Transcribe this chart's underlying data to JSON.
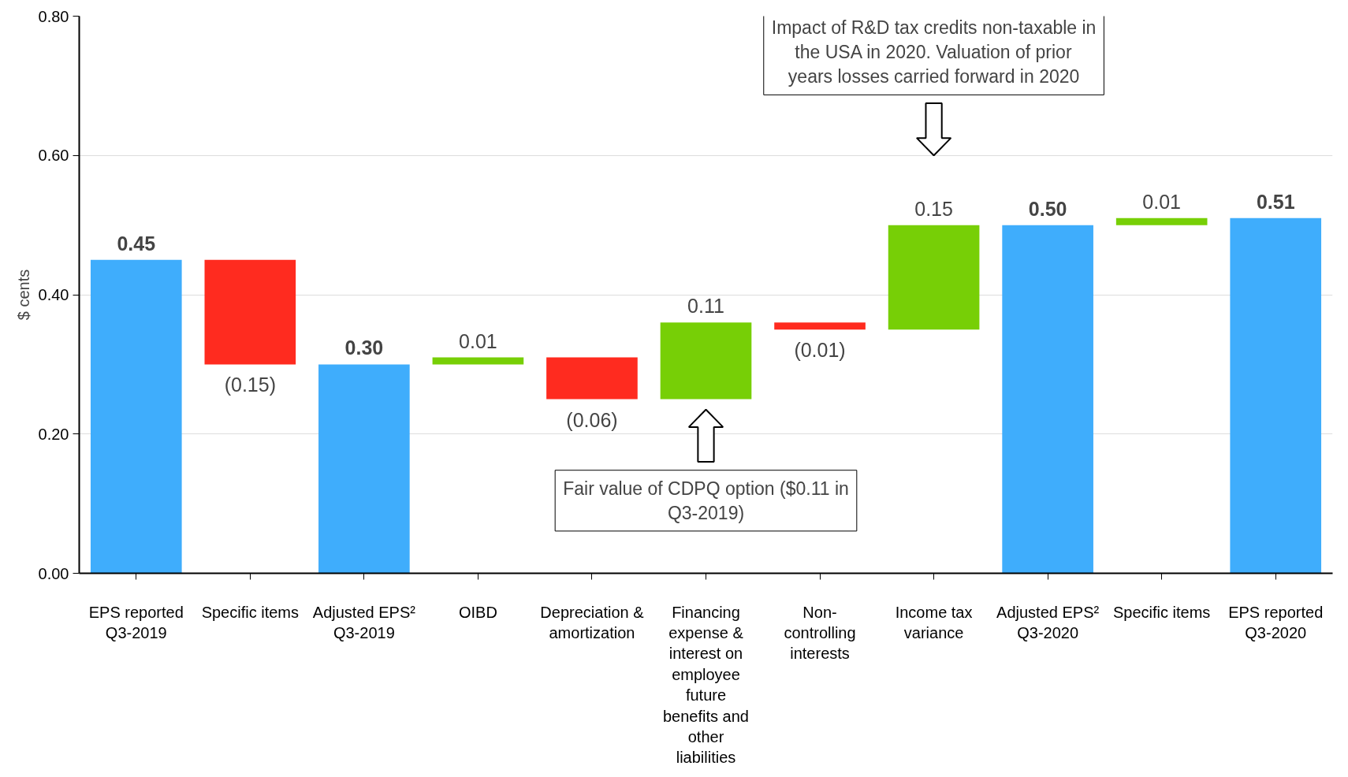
{
  "chart_data": {
    "type": "bar",
    "ylabel": "$ cents",
    "categories": [
      "EPS reported Q3-2019",
      "Specific items",
      "Adjusted EPS² Q3-2019",
      "OIBD",
      "Depreciation & amortization",
      "Financing expense & interest on employee future benefits and other liabilities",
      "Non-controlling interests",
      "Income tax variance",
      "Adjusted EPS² Q3-2020",
      "Specific items",
      "EPS reported Q3-2020"
    ],
    "values": [
      0.45,
      -0.15,
      0.3,
      0.01,
      -0.06,
      0.11,
      -0.01,
      0.15,
      0.5,
      0.01,
      0.51
    ],
    "base": [
      0,
      0.45,
      0,
      0.3,
      0.31,
      0.25,
      0.36,
      0.35,
      0,
      0.5,
      0
    ],
    "colors": [
      "#3fadfc",
      "#ff2b1f",
      "#3fadfc",
      "#77cf06",
      "#ff2b1f",
      "#77cf06",
      "#ff2b1f",
      "#77cf06",
      "#3fadfc",
      "#77cf06",
      "#3fadfc"
    ],
    "value_labels": [
      "0.45",
      "(0.15)",
      "0.30",
      "0.01",
      "(0.06)",
      "0.11",
      "(0.01)",
      "0.15",
      "0.50",
      "0.01",
      "0.51"
    ],
    "ylim": [
      0,
      0.8
    ],
    "yticks": [
      {
        "value": 0,
        "label": "0.00"
      },
      {
        "value": 0.2,
        "label": "0.20"
      },
      {
        "value": 0.4,
        "label": "0.40"
      },
      {
        "value": 0.6,
        "label": "0.60"
      },
      {
        "value": 0.8,
        "label": "0.80"
      }
    ],
    "grid": "y",
    "annotations": [
      "Impact of R&D tax credits non-taxable in the USA in 2020. Valuation of prior years losses carried forward in 2020",
      "Fair value of CDPQ option ($0.11 in Q3-2019)"
    ]
  }
}
